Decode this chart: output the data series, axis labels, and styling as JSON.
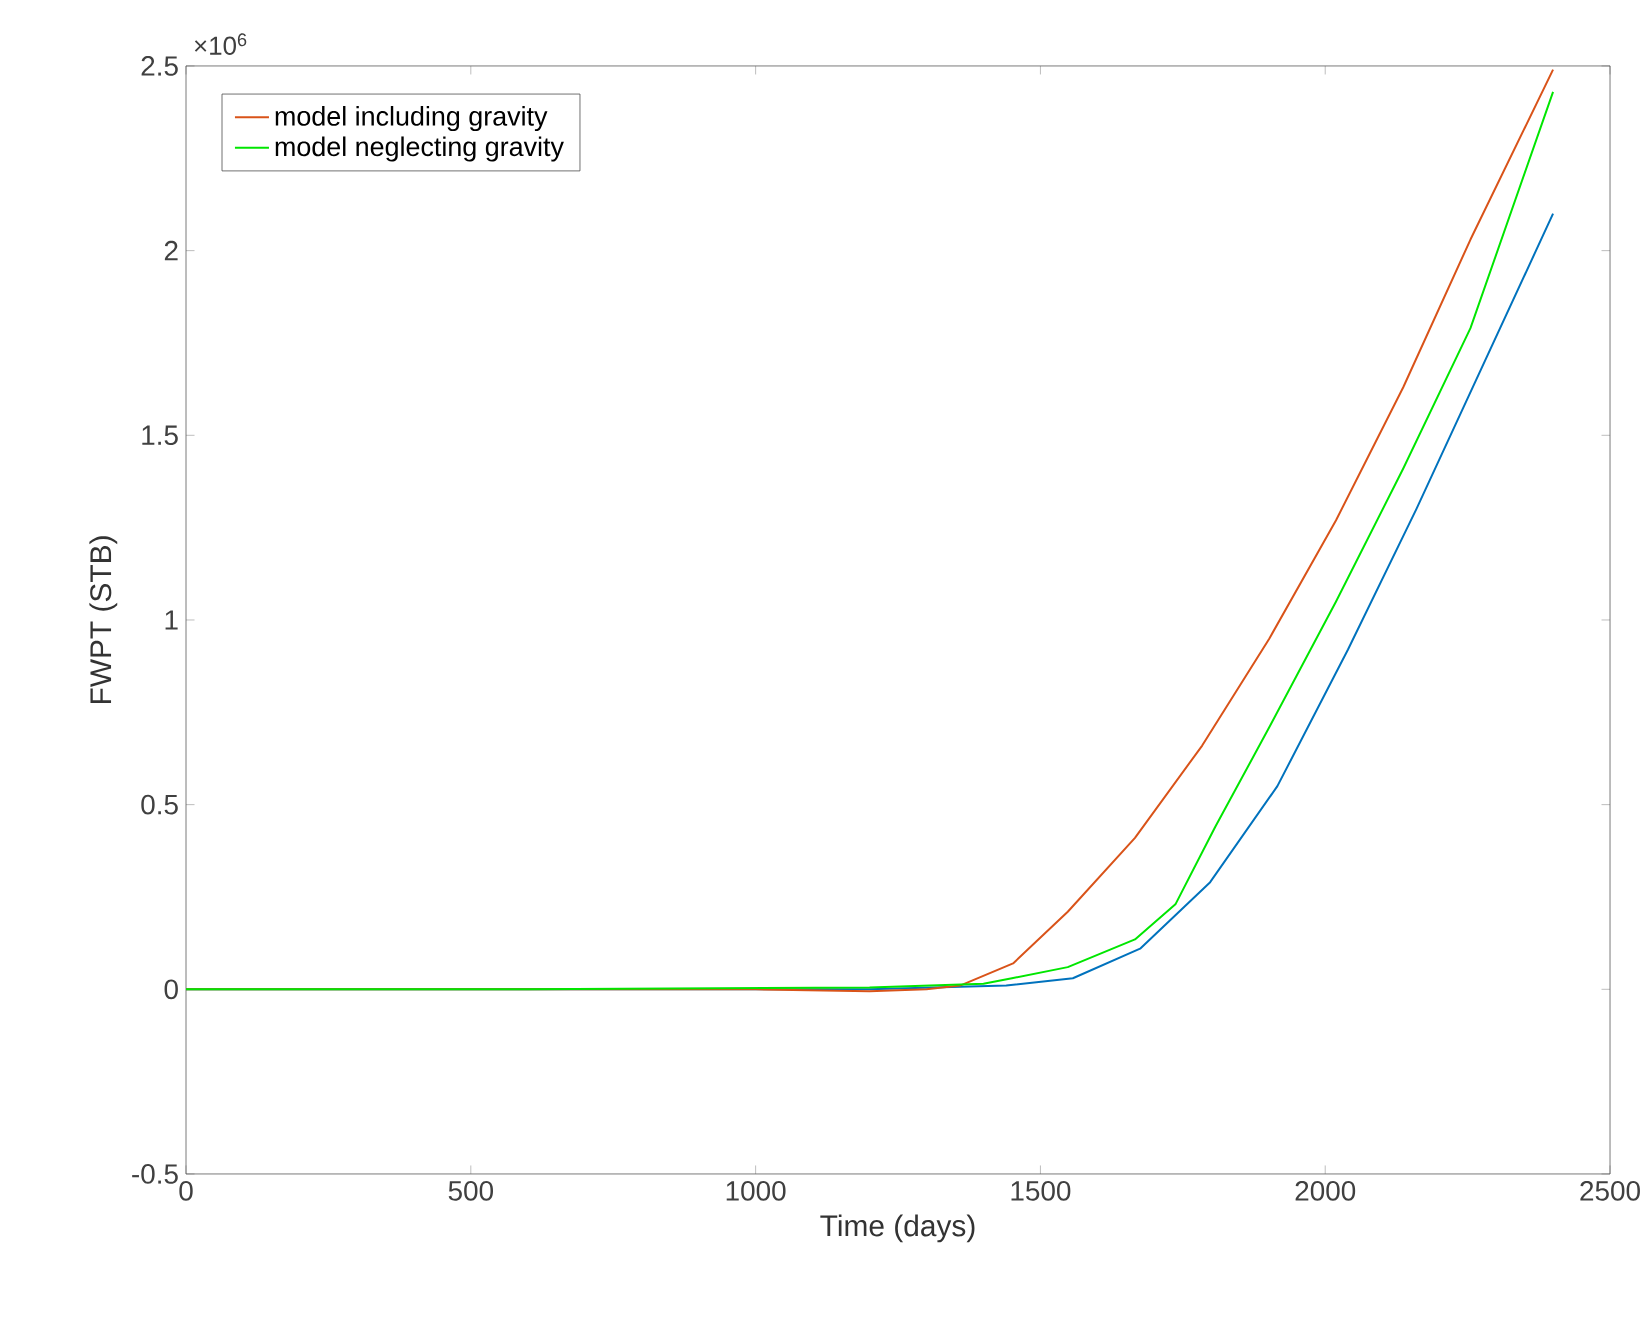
{
  "chart_data": {
    "type": "line",
    "xlabel": "Time (days)",
    "ylabel": "FWPT (STB)",
    "annotations": [
      "×10$^{6}$"
    ],
    "xlim": [
      0,
      2500
    ],
    "xticks": [
      0,
      500,
      1000,
      1500,
      2000,
      2500
    ],
    "ylim": [
      -0.5,
      2.5
    ],
    "yticks": [
      -0.5,
      0,
      0.5,
      1,
      1.5,
      2,
      2.5
    ],
    "legend": "top left",
    "series": [
      {
        "color": "#0072bd",
        "x": [
          0,
          600,
          1200,
          1440,
          1557,
          1675,
          1798,
          1916,
          2040,
          2160,
          2280,
          2400
        ],
        "values": [
          0,
          0,
          0,
          0.01,
          0.03,
          0.11,
          0.29,
          0.55,
          0.92,
          1.3,
          1.7,
          2.1
        ]
      },
      {
        "name": "model including gravity",
        "color": "#d95319",
        "x": [
          0,
          600,
          1000,
          1200,
          1300,
          1359,
          1452,
          1548,
          1666,
          1784,
          1902,
          2019,
          2137,
          2255,
          2400
        ],
        "values": [
          0,
          0,
          0,
          -0.005,
          0,
          0.01,
          0.07,
          0.21,
          0.41,
          0.66,
          0.95,
          1.27,
          1.63,
          2.03,
          2.49
        ]
      },
      {
        "name": "model neglecting gravity",
        "color": "#00e600",
        "x": [
          0,
          600,
          1200,
          1400,
          1450,
          1548,
          1666,
          1737,
          1807,
          1902,
          2019,
          2137,
          2255,
          2400
        ],
        "values": [
          0,
          0,
          0.005,
          0.015,
          0.03,
          0.06,
          0.135,
          0.23,
          0.44,
          0.71,
          1.05,
          1.41,
          1.79,
          2.43
        ]
      }
    ]
  }
}
